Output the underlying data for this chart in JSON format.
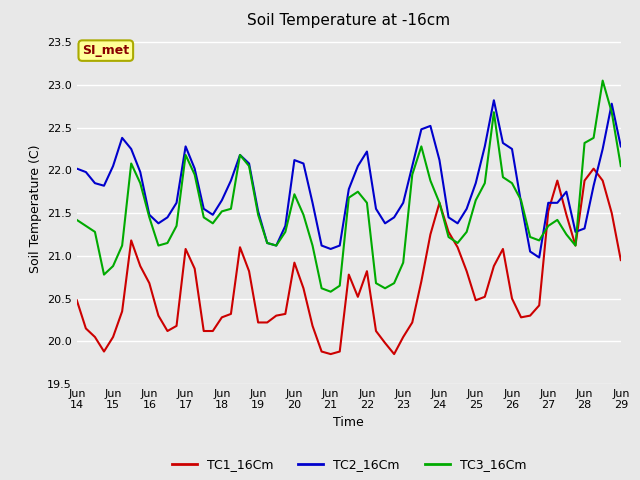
{
  "title": "Soil Temperature at -16cm",
  "xlabel": "Time",
  "ylabel": "Soil Temperature (C)",
  "ylim": [
    19.5,
    23.6
  ],
  "yticks": [
    19.5,
    20.0,
    20.5,
    21.0,
    21.5,
    22.0,
    22.5,
    23.0,
    23.5
  ],
  "plot_bg_color": "#e8e8e8",
  "grid_color": "#ffffff",
  "annotation_text": "SI_met",
  "annotation_fg": "#880000",
  "annotation_bg": "#ffff99",
  "annotation_border": "#aaaa00",
  "series": {
    "TC1_16Cm": {
      "color": "#cc0000",
      "x": [
        0,
        0.25,
        0.5,
        0.75,
        1.0,
        1.25,
        1.5,
        1.75,
        2.0,
        2.25,
        2.5,
        2.75,
        3.0,
        3.25,
        3.5,
        3.75,
        4.0,
        4.25,
        4.5,
        4.75,
        5.0,
        5.25,
        5.5,
        5.75,
        6.0,
        6.25,
        6.5,
        6.75,
        7.0,
        7.25,
        7.5,
        7.75,
        8.0,
        8.25,
        8.5,
        8.75,
        9.0,
        9.25,
        9.5,
        9.75,
        10.0,
        10.25,
        10.5,
        10.75,
        11.0,
        11.25,
        11.5,
        11.75,
        12.0,
        12.25,
        12.5,
        12.75,
        13.0,
        13.25,
        13.5,
        13.75,
        14.0,
        14.25,
        14.5,
        14.75,
        15.0
      ],
      "y": [
        20.48,
        20.15,
        20.05,
        19.88,
        20.05,
        20.35,
        21.18,
        20.88,
        20.68,
        20.3,
        20.12,
        20.18,
        21.08,
        20.85,
        20.12,
        20.12,
        20.28,
        20.32,
        21.1,
        20.82,
        20.22,
        20.22,
        20.3,
        20.32,
        20.92,
        20.62,
        20.18,
        19.88,
        19.85,
        19.88,
        20.78,
        20.52,
        20.82,
        20.12,
        19.98,
        19.85,
        20.05,
        20.22,
        20.7,
        21.25,
        21.62,
        21.28,
        21.1,
        20.82,
        20.48,
        20.52,
        20.88,
        21.08,
        20.5,
        20.28,
        20.3,
        20.42,
        21.52,
        21.88,
        21.48,
        21.12,
        21.88,
        22.02,
        21.88,
        21.5,
        20.95
      ]
    },
    "TC2_16Cm": {
      "color": "#0000cc",
      "x": [
        0,
        0.25,
        0.5,
        0.75,
        1.0,
        1.25,
        1.5,
        1.75,
        2.0,
        2.25,
        2.5,
        2.75,
        3.0,
        3.25,
        3.5,
        3.75,
        4.0,
        4.25,
        4.5,
        4.75,
        5.0,
        5.25,
        5.5,
        5.75,
        6.0,
        6.25,
        6.5,
        6.75,
        7.0,
        7.25,
        7.5,
        7.75,
        8.0,
        8.25,
        8.5,
        8.75,
        9.0,
        9.25,
        9.5,
        9.75,
        10.0,
        10.25,
        10.5,
        10.75,
        11.0,
        11.25,
        11.5,
        11.75,
        12.0,
        12.25,
        12.5,
        12.75,
        13.0,
        13.25,
        13.5,
        13.75,
        14.0,
        14.25,
        14.5,
        14.75,
        15.0
      ],
      "y": [
        22.02,
        21.98,
        21.85,
        21.82,
        22.05,
        22.38,
        22.25,
        21.98,
        21.48,
        21.38,
        21.45,
        21.62,
        22.28,
        22.02,
        21.55,
        21.48,
        21.65,
        21.88,
        22.18,
        22.08,
        21.52,
        21.15,
        21.12,
        21.35,
        22.12,
        22.08,
        21.62,
        21.12,
        21.08,
        21.12,
        21.78,
        22.05,
        22.22,
        21.55,
        21.38,
        21.45,
        21.62,
        22.05,
        22.48,
        22.52,
        22.12,
        21.45,
        21.38,
        21.55,
        21.85,
        22.28,
        22.82,
        22.32,
        22.25,
        21.62,
        21.05,
        20.98,
        21.62,
        21.62,
        21.75,
        21.28,
        21.32,
        21.82,
        22.25,
        22.78,
        22.28
      ]
    },
    "TC3_16Cm": {
      "color": "#00aa00",
      "x": [
        0,
        0.25,
        0.5,
        0.75,
        1.0,
        1.25,
        1.5,
        1.75,
        2.0,
        2.25,
        2.5,
        2.75,
        3.0,
        3.25,
        3.5,
        3.75,
        4.0,
        4.25,
        4.5,
        4.75,
        5.0,
        5.25,
        5.5,
        5.75,
        6.0,
        6.25,
        6.5,
        6.75,
        7.0,
        7.25,
        7.5,
        7.75,
        8.0,
        8.25,
        8.5,
        8.75,
        9.0,
        9.25,
        9.5,
        9.75,
        10.0,
        10.25,
        10.5,
        10.75,
        11.0,
        11.25,
        11.5,
        11.75,
        12.0,
        12.25,
        12.5,
        12.75,
        13.0,
        13.25,
        13.5,
        13.75,
        14.0,
        14.25,
        14.5,
        14.75,
        15.0
      ],
      "y": [
        21.42,
        21.35,
        21.28,
        20.78,
        20.88,
        21.12,
        22.08,
        21.85,
        21.45,
        21.12,
        21.15,
        21.35,
        22.18,
        21.95,
        21.45,
        21.38,
        21.52,
        21.55,
        22.18,
        22.05,
        21.48,
        21.15,
        21.12,
        21.28,
        21.72,
        21.48,
        21.12,
        20.62,
        20.58,
        20.65,
        21.68,
        21.75,
        21.62,
        20.68,
        20.62,
        20.68,
        20.92,
        21.95,
        22.28,
        21.88,
        21.62,
        21.22,
        21.15,
        21.28,
        21.65,
        21.85,
        22.68,
        21.92,
        21.85,
        21.65,
        21.22,
        21.18,
        21.35,
        21.42,
        21.25,
        21.12,
        22.32,
        22.38,
        23.05,
        22.68,
        22.05
      ]
    }
  },
  "xticks_positions": [
    0,
    1,
    2,
    3,
    4,
    5,
    6,
    7,
    8,
    9,
    10,
    11,
    12,
    13,
    14,
    15
  ],
  "xtick_labels": [
    "Jun\n14",
    "Jun\n15",
    "Jun\n16",
    "Jun\n17",
    "Jun\n18",
    "Jun\n19",
    "Jun\n20",
    "Jun\n21",
    "Jun\n22",
    "Jun\n23",
    "Jun\n24",
    "Jun\n25",
    "Jun\n26",
    "Jun\n27",
    "Jun\n28",
    "Jun\n29"
  ],
  "legend_entries": [
    "TC1_16Cm",
    "TC2_16Cm",
    "TC3_16Cm"
  ],
  "legend_colors": [
    "#cc0000",
    "#0000cc",
    "#00aa00"
  ]
}
